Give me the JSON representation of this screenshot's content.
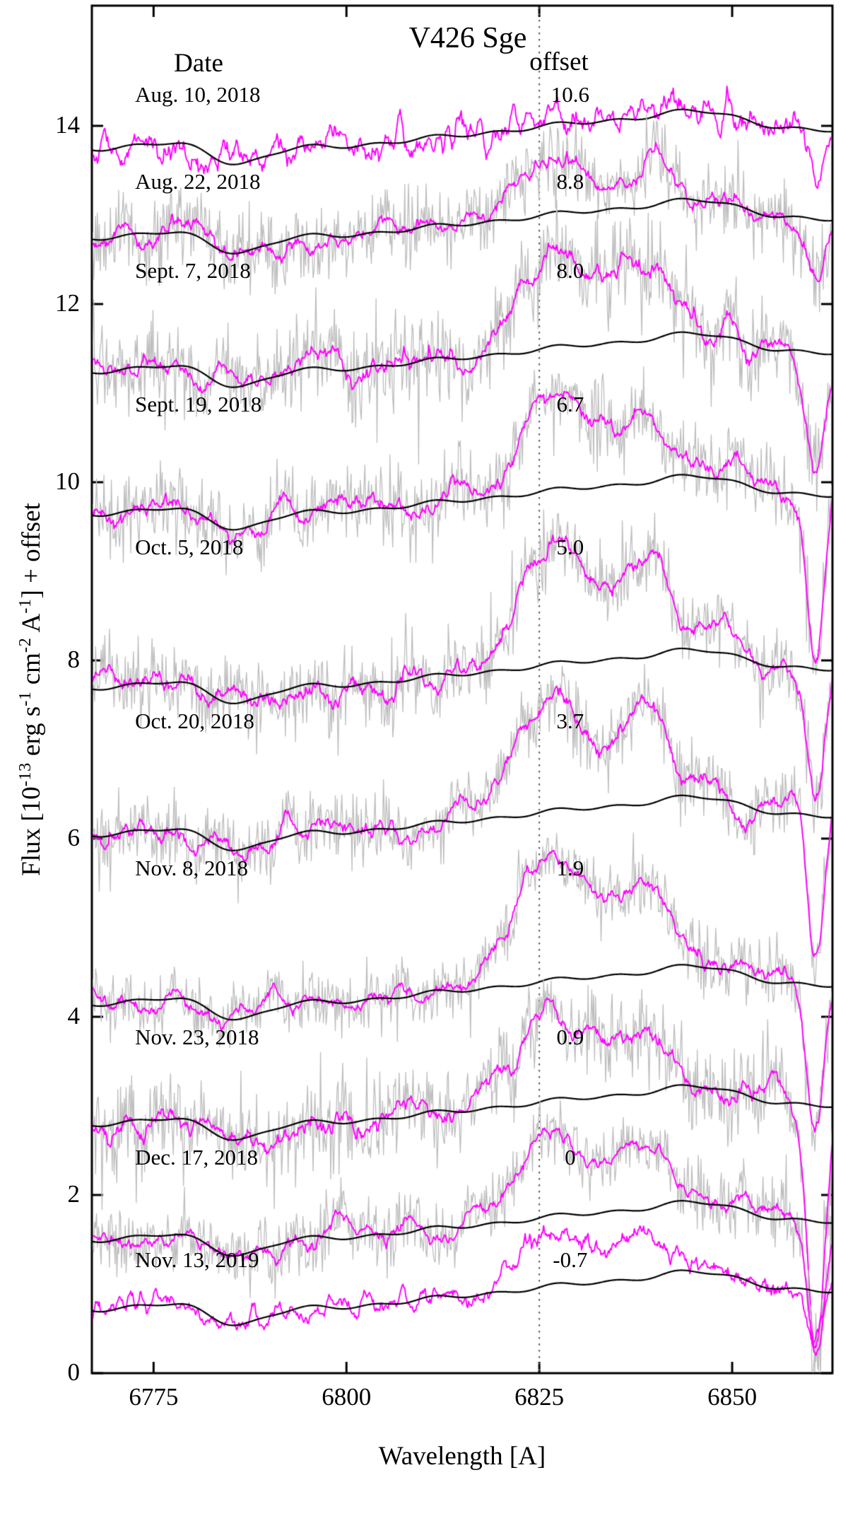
{
  "chart_data": {
    "type": "line",
    "title": "V426 Sge",
    "headers": {
      "date": "Date",
      "offset": "offset"
    },
    "xlabel": "Wavelength [A]",
    "ylabel": "Flux [10^-13 erg s^-1 cm^-2 A^-1] + offset",
    "ylabel_parts": [
      {
        "text": "Flux [10"
      },
      {
        "text": "-13",
        "sup": true
      },
      {
        "text": " erg s"
      },
      {
        "text": "-1",
        "sup": true
      },
      {
        "text": " cm"
      },
      {
        "text": "-2",
        "sup": true
      },
      {
        "text": " A"
      },
      {
        "text": "-1",
        "sup": true
      },
      {
        "text": "] + offset"
      }
    ],
    "xlim": [
      6767,
      6863
    ],
    "ylim": [
      0,
      15.35
    ],
    "x_ticks": [
      "6775",
      "6800",
      "6825",
      "6850"
    ],
    "x_tick_values": [
      6775,
      6800,
      6825,
      6850
    ],
    "y_ticks": [
      "0",
      "2",
      "4",
      "6",
      "8",
      "10",
      "12",
      "14"
    ],
    "y_tick_values": [
      0,
      2,
      4,
      6,
      8,
      10,
      12,
      14
    ],
    "reference_line_x": 6825,
    "spectral_features": {
      "main_emission_peak_A": 6827,
      "secondary_emission_peak_A": 6839,
      "continuum_absorption_dip_A": 6786,
      "edge_absorption_A": 6861
    },
    "colors": {
      "raw": "#bdbdbd",
      "smoothed": "#ff00ff",
      "template": "#000000",
      "reference_line": "#555555"
    },
    "series": [
      {
        "date": "Aug. 10, 2018",
        "offset_label": "10.6",
        "offset": 10.6,
        "continuum_level": 13.75,
        "emission_amplitude": 0.07,
        "raw_shown": false,
        "noise_raw": 0,
        "noise_smooth": 0.1,
        "edge_dip_depth": 0.5
      },
      {
        "date": "Aug. 22, 2018",
        "offset_label": "8.8",
        "offset": 8.8,
        "continuum_level": 12.75,
        "emission_amplitude": 0.45,
        "raw_shown": true,
        "noise_raw": 0.22,
        "noise_smooth": 0.1,
        "edge_dip_depth": 0.9
      },
      {
        "date": "Sept. 7, 2018",
        "offset_label": "8.0",
        "offset": 8.0,
        "continuum_level": 11.25,
        "emission_amplitude": 0.9,
        "raw_shown": true,
        "noise_raw": 0.25,
        "noise_smooth": 0.11,
        "edge_dip_depth": 1.5
      },
      {
        "date": "Sept. 19, 2018",
        "offset_label": "6.7",
        "offset": 6.7,
        "continuum_level": 9.65,
        "emission_amplitude": 0.88,
        "raw_shown": true,
        "noise_raw": 0.22,
        "noise_smooth": 0.1,
        "edge_dip_depth": 1.9
      },
      {
        "date": "Oct. 5, 2018",
        "offset_label": "5.0",
        "offset": 5.0,
        "continuum_level": 7.7,
        "emission_amplitude": 1.2,
        "raw_shown": true,
        "noise_raw": 0.22,
        "noise_smooth": 0.11,
        "edge_dip_depth": 1.4
      },
      {
        "date": "Oct. 20, 2018",
        "offset_label": "3.7",
        "offset": 3.7,
        "continuum_level": 6.05,
        "emission_amplitude": 1.08,
        "raw_shown": true,
        "noise_raw": 0.2,
        "noise_smooth": 0.1,
        "edge_dip_depth": 1.6
      },
      {
        "date": "Nov. 8, 2018",
        "offset_label": "1.9",
        "offset": 1.9,
        "continuum_level": 4.15,
        "emission_amplitude": 1.2,
        "raw_shown": true,
        "noise_raw": 0.18,
        "noise_smooth": 0.09,
        "edge_dip_depth": 1.6
      },
      {
        "date": "Nov. 23, 2018",
        "offset_label": "0.9",
        "offset": 0.9,
        "continuum_level": 2.8,
        "emission_amplitude": 0.78,
        "raw_shown": true,
        "noise_raw": 0.26,
        "noise_smooth": 0.12,
        "edge_dip_depth": 2.7
      },
      {
        "date": "Dec. 17, 2018",
        "offset_label": "0",
        "offset": 0,
        "continuum_level": 1.5,
        "emission_amplitude": 0.68,
        "raw_shown": true,
        "noise_raw": 0.2,
        "noise_smooth": 0.09,
        "edge_dip_depth": 1.4
      },
      {
        "date": "Nov. 13, 2019",
        "offset_label": "-0.7",
        "offset": -0.7,
        "continuum_level": 0.72,
        "emission_amplitude": 0.5,
        "raw_shown": false,
        "noise_raw": 0,
        "noise_smooth": 0.07,
        "edge_dip_depth": 0.6
      }
    ]
  }
}
